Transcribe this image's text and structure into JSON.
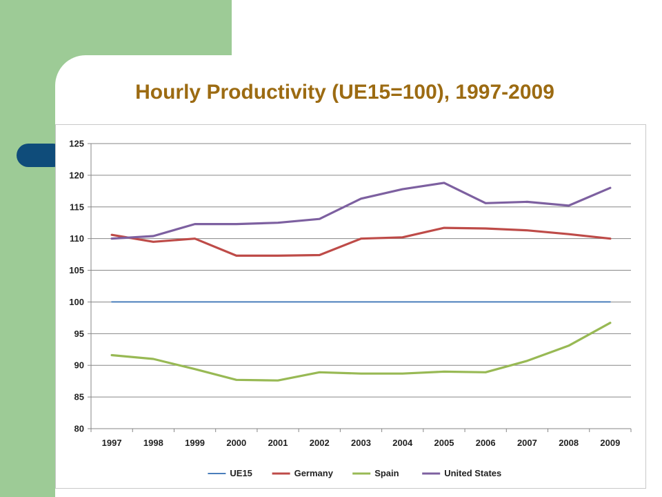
{
  "slide": {
    "title": "Hourly Productivity (UE15=100), 1997-2009"
  },
  "colors": {
    "background_green": "#9dcb96",
    "accent_tab": "#0f4c7a",
    "title": "#9c6b12",
    "gridline": "#868686"
  },
  "chart_data": {
    "type": "line",
    "title": "Hourly Productivity (UE15=100), 1997-2009",
    "xlabel": "",
    "ylabel": "",
    "categories": [
      "1997",
      "1998",
      "1999",
      "2000",
      "2001",
      "2002",
      "2003",
      "2004",
      "2005",
      "2006",
      "2007",
      "2008",
      "2009"
    ],
    "ylim": [
      80,
      125
    ],
    "yticks": [
      80,
      85,
      90,
      95,
      100,
      105,
      110,
      115,
      120,
      125
    ],
    "grid": true,
    "legend_position": "bottom",
    "series": [
      {
        "name": "UE15",
        "color": "#4a7ebb",
        "values": [
          100,
          100,
          100,
          100,
          100,
          100,
          100,
          100,
          100,
          100,
          100,
          100,
          100
        ]
      },
      {
        "name": "Germany",
        "color": "#be4b48",
        "values": [
          110.6,
          109.5,
          110.0,
          107.3,
          107.3,
          107.4,
          110.0,
          110.2,
          111.7,
          111.6,
          111.3,
          110.7,
          110.0
        ]
      },
      {
        "name": "Spain",
        "color": "#98b954",
        "values": [
          91.6,
          91.0,
          89.4,
          87.7,
          87.6,
          88.9,
          88.7,
          88.7,
          89.0,
          88.9,
          90.7,
          93.1,
          96.7
        ]
      },
      {
        "name": "United States",
        "color": "#7d60a0",
        "values": [
          110.0,
          110.4,
          112.3,
          112.3,
          112.5,
          113.1,
          116.3,
          117.8,
          118.8,
          115.6,
          115.8,
          115.2,
          118.0
        ]
      }
    ]
  }
}
